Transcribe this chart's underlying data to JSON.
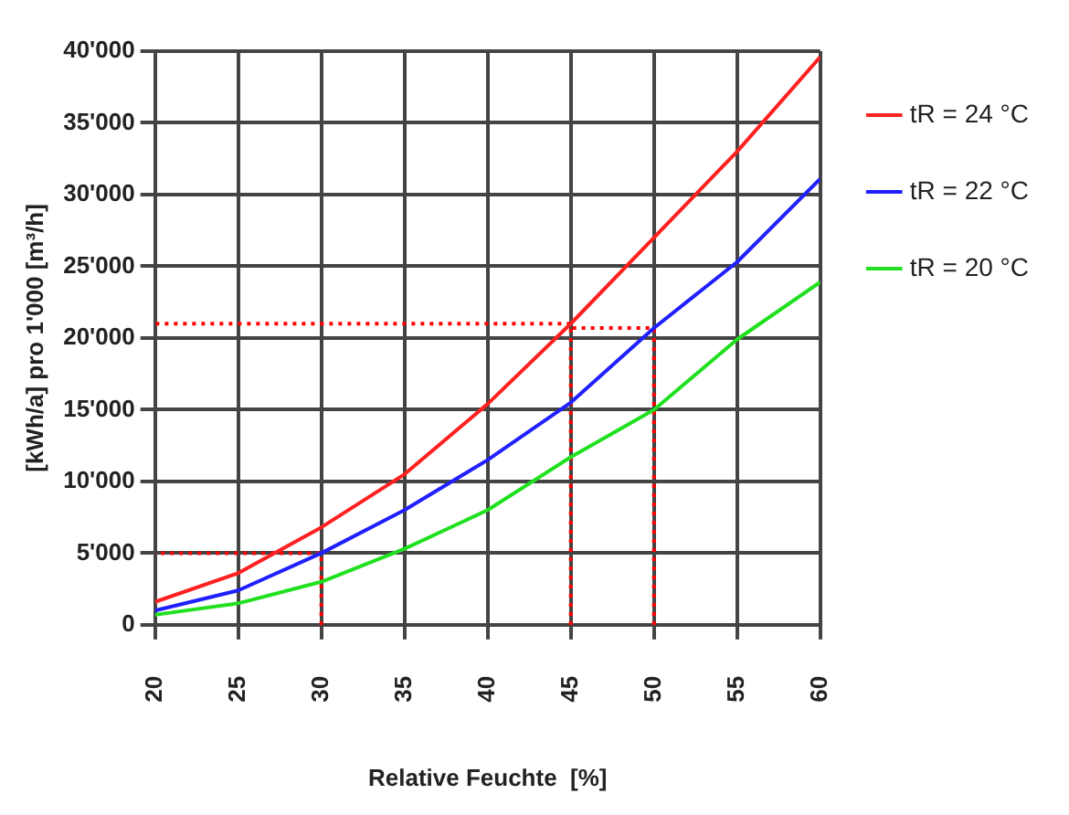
{
  "chart_data": {
    "type": "line",
    "xlabel": "Relative Feuchte  [%]",
    "ylabel": "[kWh/a] pro 1'000 [m³/h]",
    "x": [
      20,
      25,
      30,
      35,
      40,
      45,
      50,
      55,
      60
    ],
    "series": [
      {
        "name": "tR = 24 °C",
        "color": "#ff2020",
        "values": [
          1600,
          3600,
          6800,
          10500,
          15400,
          21000,
          27000,
          33000,
          39600
        ]
      },
      {
        "name": "tR = 22 °C",
        "color": "#2020ff",
        "values": [
          1000,
          2400,
          5000,
          8000,
          11500,
          15500,
          20700,
          25300,
          31100
        ]
      },
      {
        "name": "tR = 20 °C",
        "color": "#20e020",
        "values": [
          700,
          1500,
          3000,
          5300,
          8000,
          11700,
          15000,
          19900,
          23900
        ]
      },
      {
        "color": "#ff0000",
        "line_style": "dotted",
        "x": [
          45,
          45,
          20
        ],
        "values": [
          0,
          21000,
          21000
        ]
      },
      {
        "color": "#ff0000",
        "line_style": "dotted",
        "x": [
          50,
          50,
          45
        ],
        "values": [
          0,
          20700,
          20700
        ]
      },
      {
        "color": "#ff0000",
        "line_style": "dotted",
        "x": [
          30,
          30,
          20
        ],
        "values": [
          0,
          5000,
          5000
        ]
      }
    ],
    "xlim": [
      20,
      60
    ],
    "xticks": [
      20,
      25,
      30,
      35,
      40,
      45,
      50,
      55,
      60
    ],
    "ylim": [
      0,
      40000
    ],
    "yticks": [
      0,
      {
        "value": 5000,
        "label": "5'000"
      },
      {
        "value": 10000,
        "label": "10'000"
      },
      {
        "value": 15000,
        "label": "15'000"
      },
      {
        "value": 20000,
        "label": "20'000"
      },
      {
        "value": 25000,
        "label": "25'000"
      },
      {
        "value": 30000,
        "label": "30'000"
      },
      {
        "value": 35000,
        "label": "35'000"
      },
      {
        "value": 40000,
        "label": "40'000"
      }
    ],
    "grid": true,
    "legend": "top right",
    "marker": "none",
    "line_style": "solid"
  }
}
